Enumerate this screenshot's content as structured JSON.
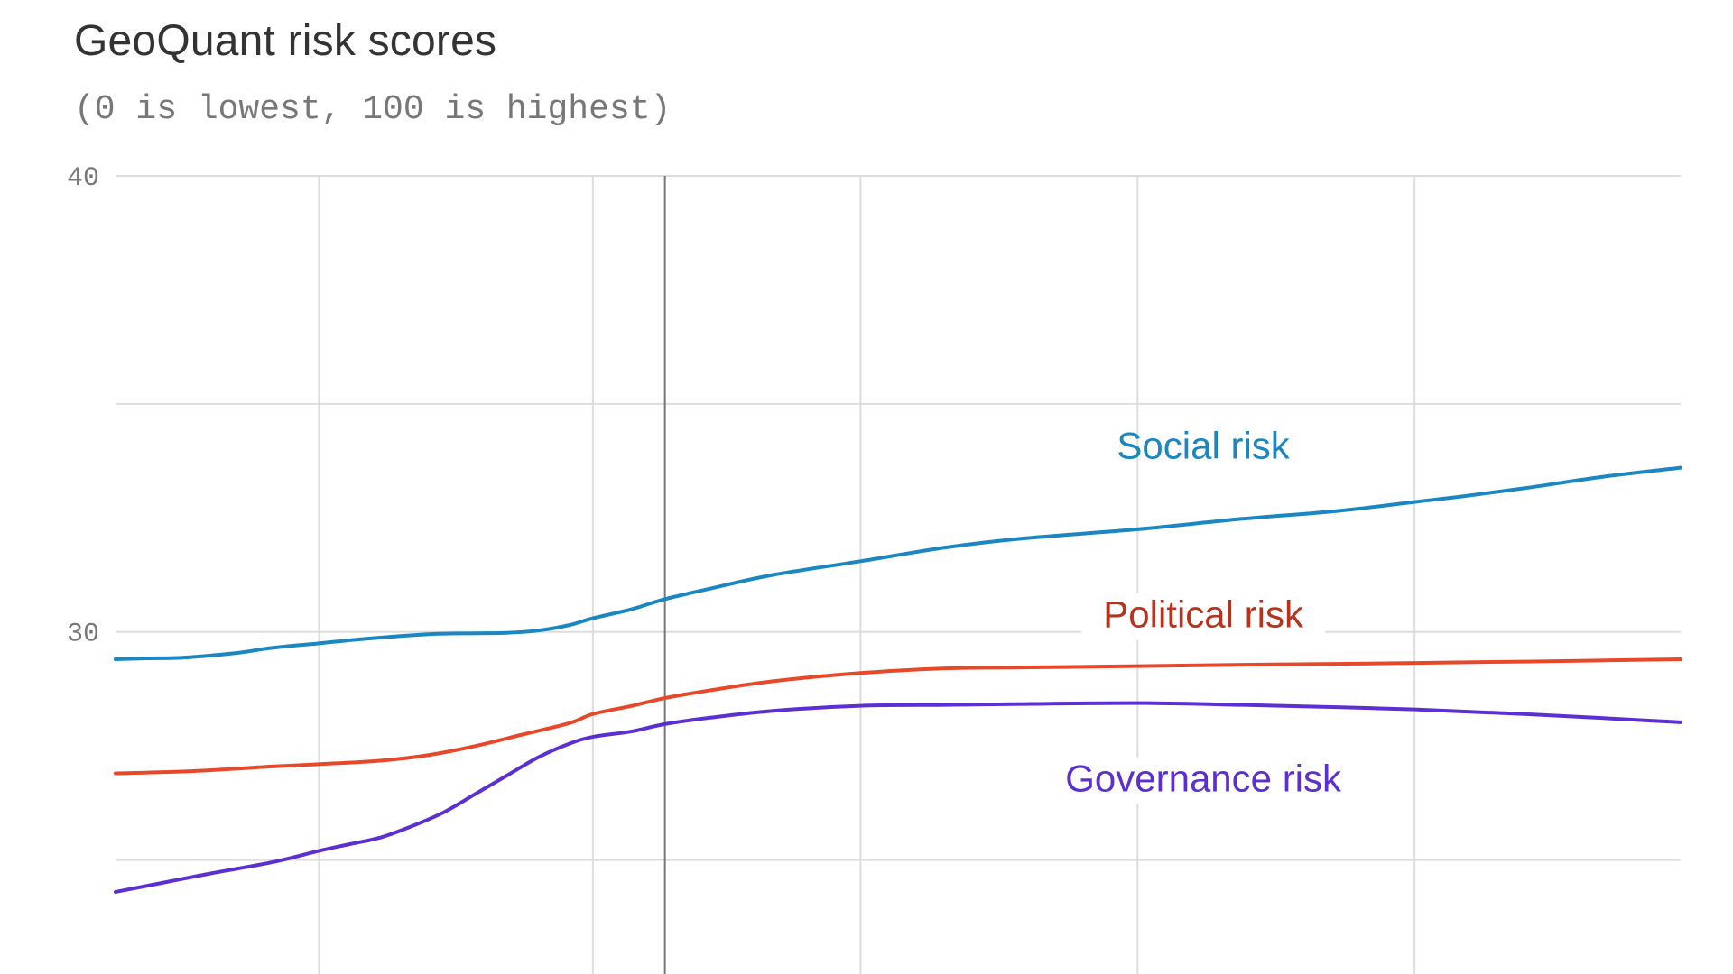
{
  "chart_data": {
    "type": "line",
    "title": "GeoQuant risk scores",
    "subtitle": "(0 is lowest, 100 is highest)",
    "xlabel": "",
    "ylabel": "",
    "ylim": [
      22.5,
      40
    ],
    "yticks": [
      {
        "value": 40,
        "label": "40"
      },
      {
        "value": 30,
        "label": "30"
      }
    ],
    "grid": true,
    "x_gridlines": [
      0.13,
      0.305,
      0.476,
      0.653,
      0.83
    ],
    "vertical_marker": 0.351,
    "series": [
      {
        "name": "Social risk",
        "color": "#1a86c2",
        "x": [
          0.0,
          0.02,
          0.04,
          0.06,
          0.08,
          0.1,
          0.13,
          0.16,
          0.2,
          0.23,
          0.25,
          0.27,
          0.29,
          0.305,
          0.33,
          0.351,
          0.38,
          0.42,
          0.476,
          0.53,
          0.58,
          0.653,
          0.72,
          0.78,
          0.83,
          0.86,
          0.9,
          0.95,
          1.0
        ],
        "values": [
          29.4,
          29.42,
          29.43,
          29.48,
          29.55,
          29.65,
          29.75,
          29.85,
          29.95,
          29.97,
          29.98,
          30.03,
          30.15,
          30.3,
          30.5,
          30.72,
          30.95,
          31.25,
          31.55,
          31.85,
          32.05,
          32.25,
          32.48,
          32.65,
          32.85,
          32.97,
          33.15,
          33.4,
          33.6
        ]
      },
      {
        "name": "Political risk",
        "color": "#e8482a",
        "x": [
          0.0,
          0.05,
          0.1,
          0.13,
          0.17,
          0.2,
          0.23,
          0.26,
          0.29,
          0.305,
          0.33,
          0.351,
          0.38,
          0.42,
          0.476,
          0.53,
          0.58,
          0.653,
          0.72,
          0.78,
          0.83,
          0.9,
          1.0
        ],
        "values": [
          26.9,
          26.95,
          27.05,
          27.1,
          27.18,
          27.3,
          27.5,
          27.75,
          28.0,
          28.2,
          28.38,
          28.55,
          28.72,
          28.92,
          29.1,
          29.2,
          29.22,
          29.25,
          29.28,
          29.3,
          29.32,
          29.35,
          29.4
        ]
      },
      {
        "name": "Governance risk",
        "color": "#5b2fd1",
        "x": [
          0.0,
          0.03,
          0.06,
          0.1,
          0.13,
          0.15,
          0.17,
          0.19,
          0.21,
          0.23,
          0.25,
          0.27,
          0.29,
          0.305,
          0.33,
          0.351,
          0.38,
          0.42,
          0.476,
          0.53,
          0.58,
          0.653,
          0.72,
          0.78,
          0.83,
          0.9,
          1.0
        ],
        "values": [
          24.3,
          24.5,
          24.7,
          24.95,
          25.2,
          25.35,
          25.5,
          25.75,
          26.05,
          26.45,
          26.85,
          27.25,
          27.55,
          27.7,
          27.82,
          27.98,
          28.12,
          28.27,
          28.38,
          28.4,
          28.42,
          28.44,
          28.4,
          28.35,
          28.3,
          28.2,
          28.02
        ]
      }
    ]
  }
}
